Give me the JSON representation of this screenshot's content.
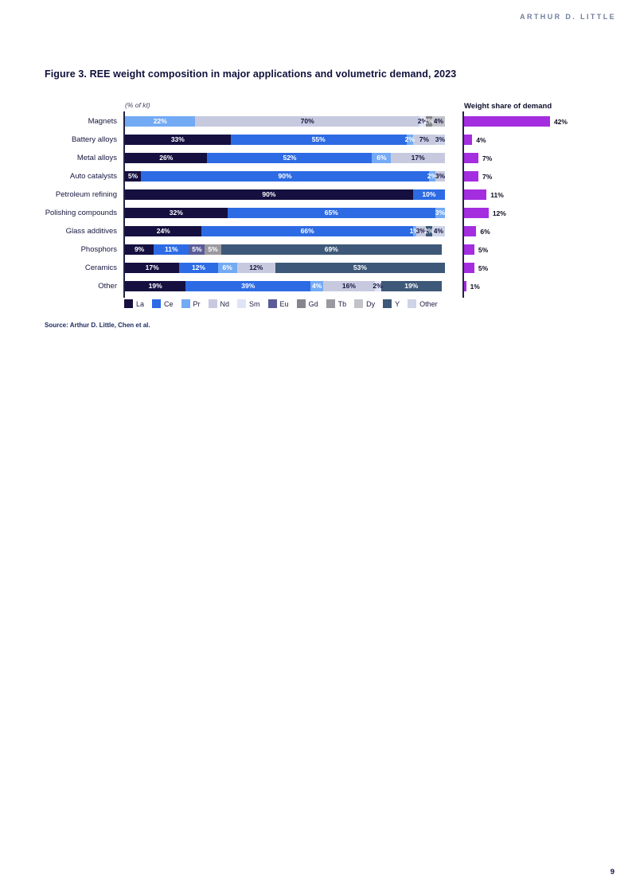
{
  "page": {
    "brand": "ARTHUR D. LITTLE",
    "title": "Figure 3. REE weight composition in major applications and volumetric demand, 2023",
    "source": "Source: Arthur D. Little, Chen et al.",
    "page_number": "9"
  },
  "chart_data": {
    "type": "bar",
    "title": "Figure 3. REE weight composition in major applications and volumetric demand, 2023",
    "categories": [
      "Magnets",
      "Battery alloys",
      "Metal alloys",
      "Auto catalysts",
      "Petroleum refining",
      "Polishing compounds",
      "Glass additives",
      "Phosphors",
      "Ceramics",
      "Other"
    ],
    "left_chart": {
      "type": "stacked-bar-horizontal",
      "axis_label": "(% of kt)",
      "unit": "%",
      "xlim": [
        0,
        100
      ],
      "rows": [
        {
          "category": "Magnets",
          "segments": [
            {
              "element": "Pr",
              "value": 22
            },
            {
              "element": "Nd",
              "value": 70
            },
            {
              "element": "Sm",
              "value": 2
            },
            {
              "element": "Gd",
              "value": 2
            },
            {
              "element": "Dy",
              "value": 4
            }
          ]
        },
        {
          "category": "Battery alloys",
          "segments": [
            {
              "element": "La",
              "value": 33
            },
            {
              "element": "Ce",
              "value": 55
            },
            {
              "element": "Pr",
              "value": 2
            },
            {
              "element": "Nd",
              "value": 7
            },
            {
              "element": "Other",
              "value": 3
            }
          ]
        },
        {
          "category": "Metal alloys",
          "segments": [
            {
              "element": "La",
              "value": 26
            },
            {
              "element": "Ce",
              "value": 52
            },
            {
              "element": "Pr",
              "value": 6
            },
            {
              "element": "Nd",
              "value": 17
            }
          ]
        },
        {
          "category": "Auto catalysts",
          "segments": [
            {
              "element": "La",
              "value": 5
            },
            {
              "element": "Ce",
              "value": 90
            },
            {
              "element": "Pr",
              "value": 2
            },
            {
              "element": "Nd",
              "value": 3
            }
          ]
        },
        {
          "category": "Petroleum refining",
          "segments": [
            {
              "element": "La",
              "value": 90
            },
            {
              "element": "Ce",
              "value": 10
            }
          ]
        },
        {
          "category": "Polishing compounds",
          "segments": [
            {
              "element": "La",
              "value": 32
            },
            {
              "element": "Ce",
              "value": 65
            },
            {
              "element": "Pr",
              "value": 3
            }
          ]
        },
        {
          "category": "Glass additives",
          "segments": [
            {
              "element": "La",
              "value": 24
            },
            {
              "element": "Ce",
              "value": 66
            },
            {
              "element": "Pr",
              "value": 1
            },
            {
              "element": "Nd",
              "value": 3
            },
            {
              "element": "Y",
              "value": 2
            },
            {
              "element": "Other",
              "value": 4
            }
          ]
        },
        {
          "category": "Phosphors",
          "segments": [
            {
              "element": "La",
              "value": 9
            },
            {
              "element": "Ce",
              "value": 11
            },
            {
              "element": "Eu",
              "value": 5
            },
            {
              "element": "Tb",
              "value": 5
            },
            {
              "element": "Y",
              "value": 69
            }
          ]
        },
        {
          "category": "Ceramics",
          "segments": [
            {
              "element": "La",
              "value": 17
            },
            {
              "element": "Ce",
              "value": 12
            },
            {
              "element": "Pr",
              "value": 6
            },
            {
              "element": "Nd",
              "value": 12
            },
            {
              "element": "Y",
              "value": 53
            }
          ]
        },
        {
          "category": "Other",
          "segments": [
            {
              "element": "La",
              "value": 19
            },
            {
              "element": "Ce",
              "value": 39
            },
            {
              "element": "Pr",
              "value": 4
            },
            {
              "element": "Nd",
              "value": 16
            },
            {
              "element": "Sm",
              "value": 2
            },
            {
              "element": "Y",
              "value": 19
            }
          ]
        }
      ]
    },
    "right_chart": {
      "type": "bar-horizontal",
      "title": "Weight share of demand",
      "unit": "%",
      "values": [
        42,
        4,
        7,
        7,
        11,
        12,
        6,
        5,
        5,
        1
      ],
      "bar_color": "#a42de0"
    },
    "legend": {
      "position": "bottom",
      "entries": [
        "La",
        "Ce",
        "Pr",
        "Nd",
        "Sm",
        "Eu",
        "Gd",
        "Tb",
        "Dy",
        "Y",
        "Other"
      ]
    },
    "colors": {
      "La": "#151040",
      "Ce": "#2d6be4",
      "Pr": "#73aaf4",
      "Nd": "#c7cadf",
      "Sm": "#dfe4f6",
      "Eu": "#5b5b97",
      "Gd": "#85858d",
      "Tb": "#99999f",
      "Dy": "#c1c3c9",
      "Y": "#3d5878",
      "Other": "#cdd4e7"
    },
    "label_colors": {
      "La": "#ffffff",
      "Ce": "#ffffff",
      "Pr": "#ffffff",
      "Nd": "#15123e",
      "Sm": "#15123e",
      "Eu": "#ffffff",
      "Gd": "#ffffff",
      "Tb": "#ffffff",
      "Dy": "#15123e",
      "Y": "#ffffff",
      "Other": "#15123e"
    }
  }
}
